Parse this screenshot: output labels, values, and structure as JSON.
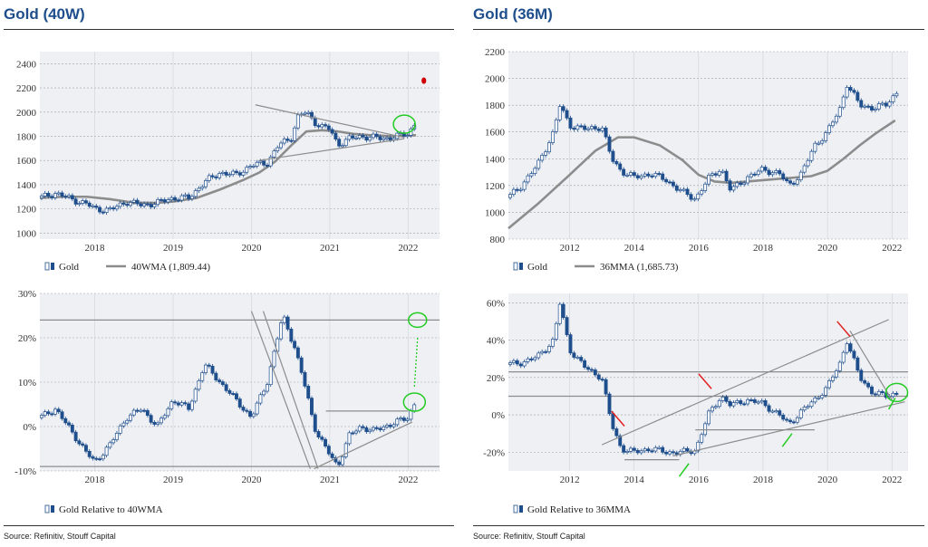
{
  "colors": {
    "title": "#1f4e8c",
    "panel": "#eef0f4",
    "candle": "#1f4e8c",
    "ma": "#8c8c8c",
    "trend": "#8c8c8c",
    "highlight": "#22cc22",
    "green_arrow": "#22cc22",
    "red_arrow": "#e02020",
    "red_marker": "#d00000"
  },
  "left": {
    "title": "Gold (40W)",
    "source": "Source: Refinitiv, Stouff Capital"
  },
  "right": {
    "title": "Gold (36M)",
    "source": "Source: Refinitiv, Stouff Capital"
  },
  "chart_data": [
    {
      "id": "gold_40w",
      "type": "candlestick",
      "title": "",
      "xlim": [
        2017.3,
        2022.4
      ],
      "ylim": [
        950,
        2500
      ],
      "x_ticks": [
        "2018",
        "2019",
        "2020",
        "2021",
        "2022"
      ],
      "y_ticks": [
        "1000",
        "1200",
        "1400",
        "1600",
        "1800",
        "2000",
        "2200",
        "2400"
      ],
      "legend": [
        "Gold",
        "40WMA (1,809.44)"
      ],
      "series": [
        {
          "name": "Gold",
          "x": [
            2017.3,
            2017.5,
            2017.7,
            2017.9,
            2018.0,
            2018.2,
            2018.4,
            2018.6,
            2018.8,
            2019.0,
            2019.2,
            2019.4,
            2019.6,
            2019.8,
            2020.0,
            2020.2,
            2020.35,
            2020.5,
            2020.6,
            2020.7,
            2020.8,
            2020.9,
            2021.0,
            2021.1,
            2021.25,
            2021.4,
            2021.55,
            2021.7,
            2021.85,
            2022.0,
            2022.1
          ],
          "values": [
            1290,
            1330,
            1280,
            1240,
            1200,
            1190,
            1260,
            1230,
            1250,
            1290,
            1290,
            1420,
            1500,
            1480,
            1560,
            1580,
            1730,
            1780,
            1970,
            2000,
            1920,
            1880,
            1860,
            1730,
            1780,
            1800,
            1790,
            1780,
            1800,
            1820,
            1920
          ]
        },
        {
          "name": "40WMA",
          "x": [
            2017.3,
            2017.6,
            2017.9,
            2018.2,
            2018.5,
            2018.8,
            2019.0,
            2019.3,
            2019.6,
            2019.9,
            2020.1,
            2020.3,
            2020.5,
            2020.7,
            2020.9,
            2021.1,
            2021.3,
            2021.5,
            2021.8,
            2022.1
          ],
          "values": [
            1290,
            1300,
            1300,
            1280,
            1250,
            1250,
            1260,
            1290,
            1360,
            1440,
            1500,
            1590,
            1720,
            1840,
            1850,
            1840,
            1820,
            1810,
            1800,
            1809
          ]
        }
      ],
      "annotations": [
        {
          "type": "marker",
          "x": 2022.2,
          "y": 2260
        }
      ]
    },
    {
      "id": "gold_36m",
      "type": "candlestick",
      "title": "",
      "xlim": [
        2010.1,
        2022.5
      ],
      "ylim": [
        800,
        2200
      ],
      "x_ticks": [
        "2012",
        "2014",
        "2016",
        "2018",
        "2020",
        "2022"
      ],
      "y_ticks": [
        "800",
        "1000",
        "1200",
        "1400",
        "1600",
        "1800",
        "2000",
        "2200"
      ],
      "legend": [
        "Gold",
        "36MMA (1,685.73)"
      ],
      "series": [
        {
          "name": "Gold",
          "x": [
            2010.1,
            2010.5,
            2011.0,
            2011.5,
            2011.7,
            2012.0,
            2012.5,
            2013.0,
            2013.3,
            2013.6,
            2014.0,
            2014.5,
            2015.0,
            2015.5,
            2015.9,
            2016.3,
            2016.7,
            2017.0,
            2017.5,
            2018.0,
            2018.5,
            2018.8,
            2019.2,
            2019.6,
            2020.0,
            2020.4,
            2020.6,
            2021.0,
            2021.4,
            2021.8,
            2022.2
          ],
          "values": [
            1110,
            1200,
            1350,
            1600,
            1800,
            1650,
            1620,
            1640,
            1400,
            1310,
            1260,
            1290,
            1240,
            1150,
            1100,
            1250,
            1330,
            1160,
            1260,
            1320,
            1290,
            1200,
            1290,
            1500,
            1600,
            1780,
            1960,
            1800,
            1780,
            1800,
            1910
          ]
        },
        {
          "name": "36MMA",
          "x": [
            2010.1,
            2011.0,
            2012.0,
            2012.8,
            2013.5,
            2014.0,
            2014.8,
            2015.5,
            2016.0,
            2016.5,
            2017.0,
            2018.0,
            2019.0,
            2019.5,
            2020.0,
            2020.5,
            2021.0,
            2021.5,
            2022.1
          ],
          "values": [
            880,
            1060,
            1280,
            1460,
            1560,
            1560,
            1500,
            1390,
            1280,
            1230,
            1220,
            1240,
            1260,
            1270,
            1310,
            1400,
            1500,
            1590,
            1686
          ]
        }
      ],
      "annotations": []
    },
    {
      "id": "gold_rel_40wma",
      "type": "candlestick",
      "title": "",
      "xlim": [
        2017.3,
        2022.4
      ],
      "ylim": [
        -10,
        30
      ],
      "x_ticks": [
        "2018",
        "2019",
        "2020",
        "2021",
        "2022"
      ],
      "y_ticks": [
        "-10%",
        "0%",
        "10%",
        "20%",
        "30%"
      ],
      "legend": [
        "Gold Relative to 40WMA"
      ],
      "series": [
        {
          "name": "Gold Relative to 40WMA",
          "x": [
            2017.3,
            2017.5,
            2017.7,
            2017.9,
            2018.0,
            2018.2,
            2018.4,
            2018.6,
            2018.8,
            2019.0,
            2019.2,
            2019.4,
            2019.6,
            2019.8,
            2020.0,
            2020.2,
            2020.4,
            2020.55,
            2020.7,
            2020.8,
            2020.95,
            2021.1,
            2021.25,
            2021.4,
            2021.55,
            2021.7,
            2021.85,
            2022.0,
            2022.1
          ],
          "values": [
            2,
            4,
            -1,
            -6,
            -8,
            -4,
            2,
            4,
            0,
            6,
            4,
            14,
            10,
            6,
            2,
            10,
            25,
            18,
            8,
            0,
            -5,
            -9,
            -2,
            0,
            -1,
            0,
            1,
            2,
            6
          ]
        }
      ],
      "annotations": [
        {
          "type": "hline",
          "y": 24
        },
        {
          "type": "hline",
          "y": -9
        }
      ]
    },
    {
      "id": "gold_rel_36mma",
      "type": "candlestick",
      "title": "",
      "xlim": [
        2010.1,
        2022.5
      ],
      "ylim": [
        -30,
        65
      ],
      "x_ticks": [
        "2012",
        "2014",
        "2016",
        "2018",
        "2020",
        "2022"
      ],
      "y_ticks": [
        "-20%",
        "0%",
        "20%",
        "40%",
        "60%"
      ],
      "legend": [
        "Gold Relative to 36MMA"
      ],
      "series": [
        {
          "name": "Gold Relative to 36MMA",
          "x": [
            2010.1,
            2010.5,
            2011.0,
            2011.5,
            2011.7,
            2012.0,
            2012.5,
            2013.0,
            2013.3,
            2013.6,
            2014.0,
            2014.5,
            2015.0,
            2015.5,
            2015.9,
            2016.3,
            2016.7,
            2017.0,
            2017.5,
            2018.0,
            2018.5,
            2018.8,
            2019.2,
            2019.6,
            2020.0,
            2020.4,
            2020.6,
            2021.0,
            2021.4,
            2021.8,
            2022.2
          ],
          "values": [
            27,
            28,
            31,
            40,
            60,
            35,
            25,
            20,
            -5,
            -18,
            -20,
            -18,
            -20,
            -20,
            -19,
            0,
            10,
            5,
            8,
            6,
            0,
            -5,
            2,
            8,
            15,
            28,
            40,
            20,
            12,
            10,
            12
          ]
        }
      ],
      "annotations": [
        {
          "type": "hline",
          "y": 23
        },
        {
          "type": "hline",
          "y": 10
        }
      ]
    }
  ]
}
